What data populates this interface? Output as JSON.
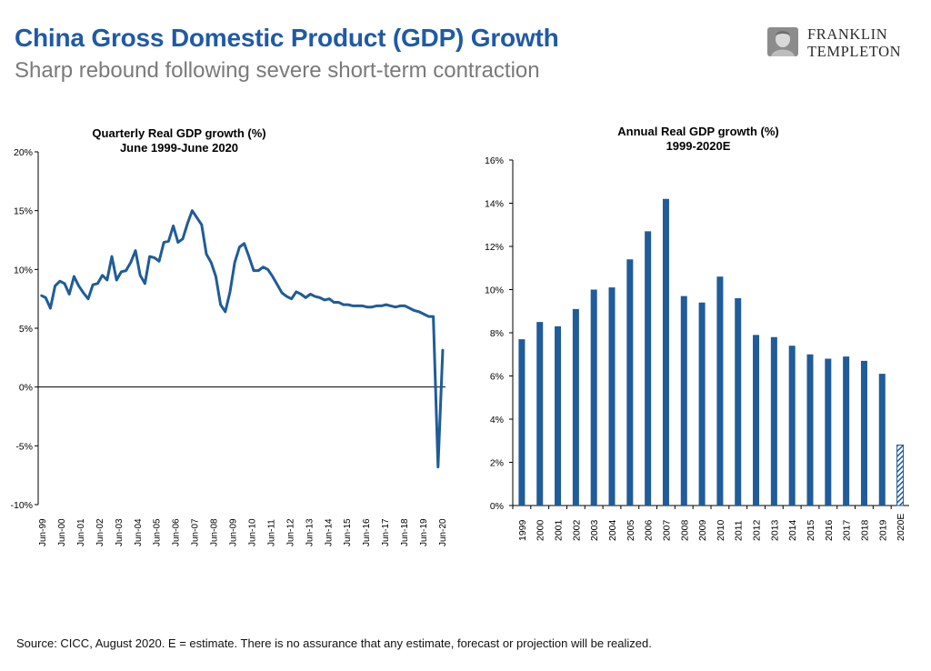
{
  "header": {
    "title": "China Gross Domestic Product (GDP) Growth",
    "subtitle": "Sharp rebound following severe short-term contraction",
    "logo_line1": "FRANKLIN",
    "logo_line2": "TEMPLETON"
  },
  "footer": {
    "source": "Source: CICC, August 2020. E = estimate. There is no assurance that any estimate, forecast or projection will be realized."
  },
  "colors": {
    "title": "#1f5aa6",
    "series": "#1f5c99",
    "subtitle": "#7a7a7a"
  },
  "chart_data": [
    {
      "type": "line",
      "title": "Quarterly Real GDP growth (%)",
      "subtitle": "June 1999-June 2020",
      "ylim": [
        -10,
        20
      ],
      "yticks": [
        20,
        15,
        10,
        5,
        0,
        -5,
        -10
      ],
      "ytick_labels": [
        "20%",
        "15%",
        "10%",
        "5%",
        "0%",
        "-5%",
        "-10%"
      ],
      "x_tick_labels": [
        "Jun-99",
        "Jun-00",
        "Jun-01",
        "Jun-02",
        "Jun-03",
        "Jun-04",
        "Jun-05",
        "Jun-06",
        "Jun-07",
        "Jun-08",
        "Jun-09",
        "Jun-10",
        "Jun-11",
        "Jun-12",
        "Jun-13",
        "Jun-14",
        "Jun-15",
        "Jun-16",
        "Jun-17",
        "Jun-18",
        "Jun-19",
        "Jun-20"
      ],
      "series": [
        {
          "name": "Quarterly Real GDP growth",
          "values": [
            7.8,
            7.6,
            6.7,
            8.6,
            9.0,
            8.8,
            7.9,
            9.4,
            8.6,
            8.0,
            7.5,
            8.7,
            8.8,
            9.5,
            9.1,
            11.1,
            9.1,
            9.8,
            9.9,
            10.6,
            11.6,
            9.5,
            8.8,
            11.1,
            11.0,
            10.7,
            12.3,
            12.4,
            13.7,
            12.3,
            12.6,
            13.9,
            15.0,
            14.4,
            13.8,
            11.3,
            10.6,
            9.4,
            7.0,
            6.4,
            8.1,
            10.6,
            11.9,
            12.2,
            11.1,
            9.9,
            9.9,
            10.2,
            10.0,
            9.4,
            8.7,
            8.0,
            7.7,
            7.5,
            8.1,
            7.9,
            7.6,
            7.9,
            7.7,
            7.6,
            7.4,
            7.5,
            7.2,
            7.2,
            7.0,
            7.0,
            6.9,
            6.9,
            6.9,
            6.8,
            6.8,
            6.9,
            6.9,
            7.0,
            6.9,
            6.8,
            6.9,
            6.9,
            6.7,
            6.5,
            6.4,
            6.2,
            6.0,
            6.0,
            -6.8,
            3.2
          ]
        }
      ]
    },
    {
      "type": "bar",
      "title": "Annual Real GDP growth (%)",
      "subtitle": "1999-2020E",
      "ylim": [
        0,
        16
      ],
      "yticks": [
        16,
        14,
        12,
        10,
        8,
        6,
        4,
        2,
        0
      ],
      "ytick_labels": [
        "16%",
        "14%",
        "12%",
        "10%",
        "8%",
        "6%",
        "4%",
        "2%",
        "0%"
      ],
      "categories": [
        "1999",
        "2000",
        "2001",
        "2002",
        "2003",
        "2004",
        "2005",
        "2006",
        "2007",
        "2008",
        "2009",
        "2010",
        "2011",
        "2012",
        "2013",
        "2014",
        "2015",
        "2016",
        "2017",
        "2018",
        "2019",
        "2020E"
      ],
      "values": [
        7.7,
        8.5,
        8.3,
        9.1,
        10.0,
        10.1,
        11.4,
        12.7,
        14.2,
        9.7,
        9.4,
        10.6,
        9.6,
        7.9,
        7.8,
        7.4,
        7.0,
        6.8,
        6.9,
        6.7,
        6.1,
        2.8
      ],
      "estimate_categories": [
        "2020E"
      ]
    }
  ]
}
